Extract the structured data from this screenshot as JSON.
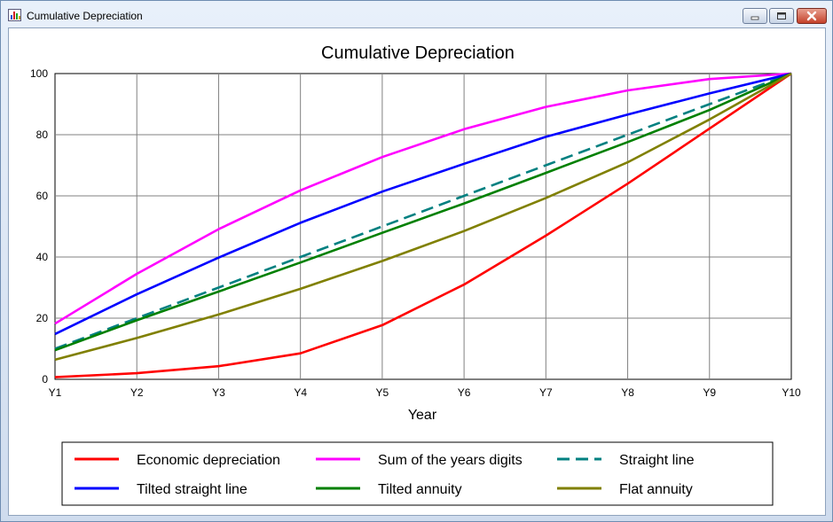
{
  "window": {
    "title": "Cumulative Depreciation",
    "icon": "chart-app-icon",
    "controls": {
      "minimize_icon": "minimize-icon",
      "maximize_icon": "maximize-icon",
      "close_icon": "close-icon"
    }
  },
  "chart_data": {
    "type": "line",
    "title": "Cumulative Depreciation",
    "xlabel": "Year",
    "ylabel": "",
    "categories": [
      "Y1",
      "Y2",
      "Y3",
      "Y4",
      "Y5",
      "Y6",
      "Y7",
      "Y8",
      "Y9",
      "Y10"
    ],
    "ylim": [
      0,
      100
    ],
    "yticks": [
      0,
      20,
      40,
      60,
      80,
      100
    ],
    "grid": true,
    "legend_position": "bottom",
    "series": [
      {
        "name": "Economic depreciation",
        "color": "#ff0000",
        "dashed": false,
        "values": [
          0.7,
          2,
          4.3,
          8.5,
          17.7,
          31,
          47,
          64,
          82,
          100
        ]
      },
      {
        "name": "Sum of the years digits",
        "color": "#ff00ff",
        "dashed": false,
        "values": [
          18.2,
          34.5,
          49.1,
          61.8,
          72.7,
          81.8,
          89.1,
          94.5,
          98.2,
          100
        ]
      },
      {
        "name": "Straight line",
        "color": "#008080",
        "dashed": true,
        "values": [
          10,
          20,
          30,
          40,
          50,
          60,
          70,
          80,
          90,
          100
        ]
      },
      {
        "name": "Tilted straight line",
        "color": "#0000ff",
        "dashed": false,
        "values": [
          14.8,
          27.8,
          39.8,
          51.2,
          61.4,
          70.5,
          79.3,
          86.6,
          93.5,
          100
        ]
      },
      {
        "name": "Tilted annuity",
        "color": "#008000",
        "dashed": false,
        "values": [
          9.5,
          19.3,
          28.7,
          38.2,
          47.9,
          57.5,
          67.5,
          77.6,
          88.1,
          100
        ]
      },
      {
        "name": "Flat annuity",
        "color": "#808000",
        "dashed": false,
        "values": [
          6.4,
          13.5,
          21.2,
          29.6,
          38.7,
          48.5,
          59.3,
          71,
          85,
          100
        ]
      }
    ]
  }
}
